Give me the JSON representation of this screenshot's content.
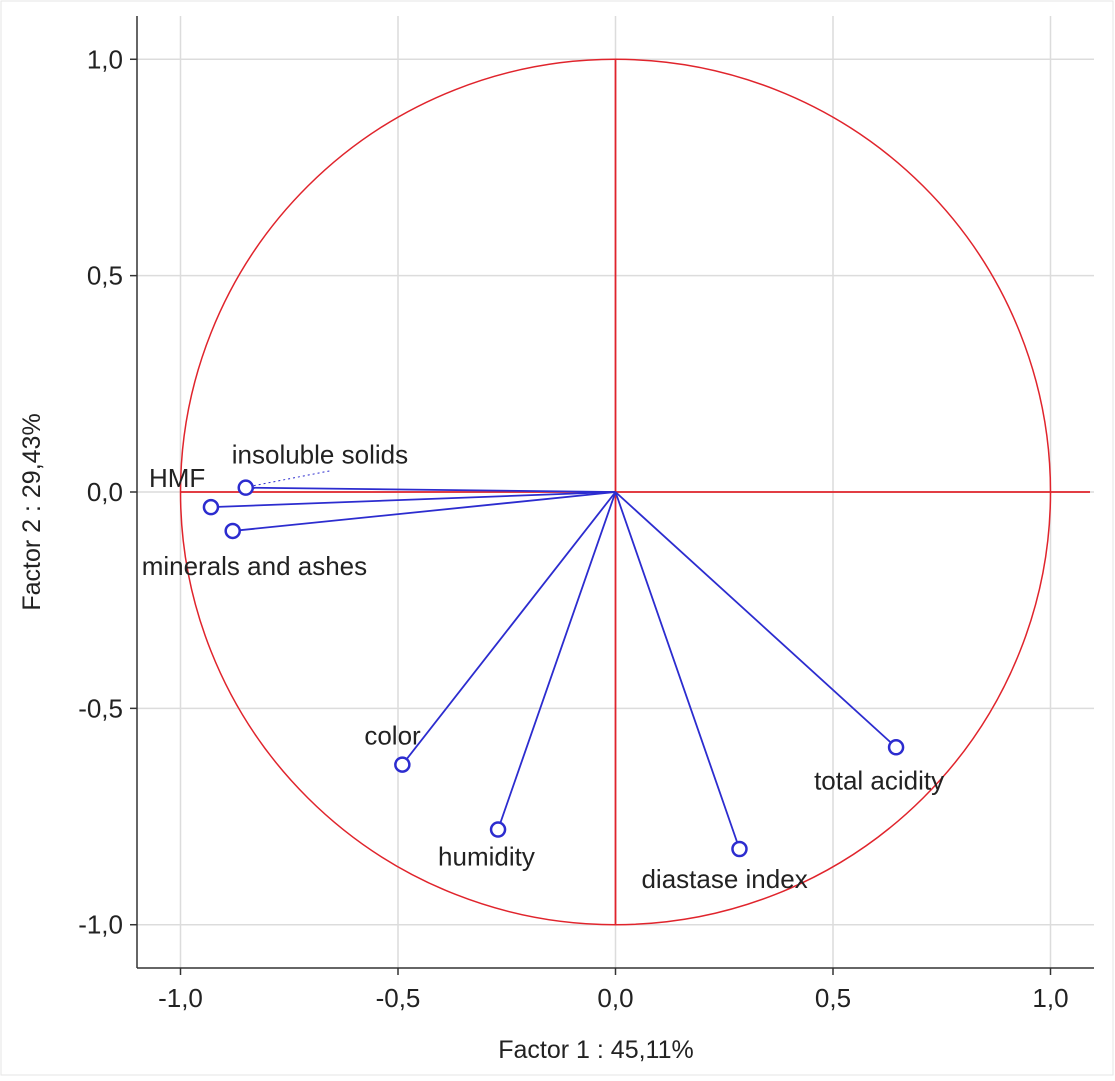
{
  "chart_data": {
    "type": "scatter",
    "subtype": "pca-correlation-circle",
    "title": "",
    "xlabel": "Factor 1 : 45,11%",
    "ylabel": "Factor 2 : 29,43%",
    "xlim": [
      -1.1,
      1.1
    ],
    "ylim": [
      -1.1,
      1.1
    ],
    "x_ticks": [
      -1.0,
      -0.5,
      0.0,
      0.5,
      1.0
    ],
    "x_tick_labels": [
      "-1,0",
      "-0,5",
      "0,0",
      "0,5",
      "1,0"
    ],
    "y_ticks": [
      1.0,
      0.5,
      0.0,
      -0.5,
      -1.0
    ],
    "y_tick_labels": [
      "1,0",
      "0,5",
      "0,0",
      "-0,5",
      "-1,0"
    ],
    "grid": true,
    "unit_circle": true,
    "axis_lines_color": "#e0242c",
    "vector_color": "#2c2ccf",
    "grid_color": "#dcdcdc",
    "points": [
      {
        "label": "insoluble solids",
        "x": -0.85,
        "y": 0.01
      },
      {
        "label": "HMF",
        "x": -0.93,
        "y": -0.035
      },
      {
        "label": "minerals and ashes",
        "x": -0.88,
        "y": -0.09
      },
      {
        "label": "color",
        "x": -0.49,
        "y": -0.63
      },
      {
        "label": "humidity",
        "x": -0.27,
        "y": -0.78
      },
      {
        "label": "diastase index",
        "x": 0.285,
        "y": -0.825
      },
      {
        "label": "total acidity",
        "x": 0.645,
        "y": -0.59
      }
    ]
  }
}
